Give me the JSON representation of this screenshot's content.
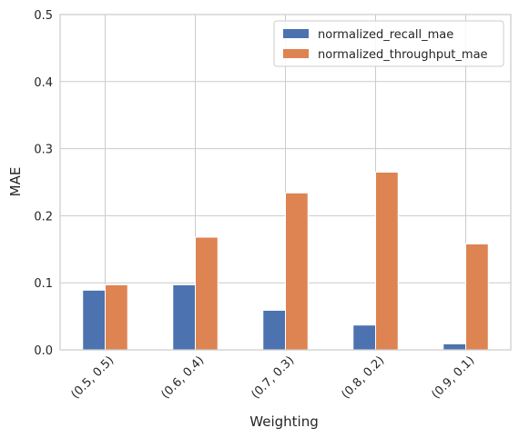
{
  "chart_data": {
    "type": "bar",
    "categories": [
      "(0.5, 0.5)",
      "(0.6, 0.4)",
      "(0.7, 0.3)",
      "(0.8, 0.2)",
      "(0.9, 0.1)"
    ],
    "series": [
      {
        "name": "normalized_recall_mae",
        "values": [
          0.089,
          0.097,
          0.059,
          0.037,
          0.009
        ],
        "color": "#4c72b0"
      },
      {
        "name": "normalized_throughput_mae",
        "values": [
          0.097,
          0.168,
          0.234,
          0.265,
          0.158
        ],
        "color": "#dd8452"
      }
    ],
    "xlabel": "Weighting",
    "ylabel": "MAE",
    "ylim": [
      0,
      0.5
    ],
    "yticks": [
      "0.0",
      "0.1",
      "0.2",
      "0.3",
      "0.4",
      "0.5"
    ],
    "grid": true,
    "legend": "top-right"
  }
}
